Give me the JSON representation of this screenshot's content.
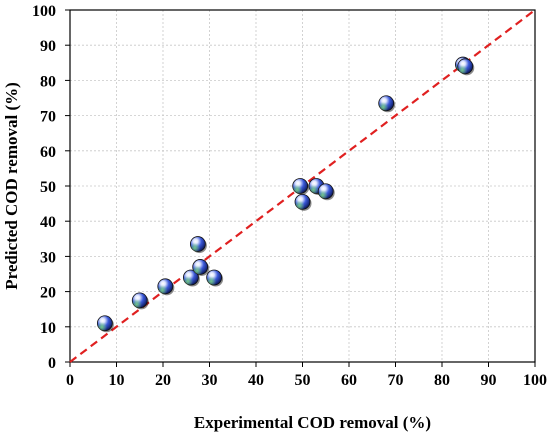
{
  "chart_data": {
    "type": "scatter",
    "title": "",
    "xlabel": "Experimental COD removal (%)",
    "ylabel": "Predicted COD removal (%)",
    "xlim": [
      0,
      100
    ],
    "ylim": [
      0,
      100
    ],
    "xticks": [
      "0",
      "10",
      "20",
      "30",
      "40",
      "50",
      "60",
      "70",
      "80",
      "90",
      "100"
    ],
    "yticks": [
      "0",
      "10",
      "20",
      "30",
      "40",
      "50",
      "60",
      "70",
      "80",
      "90",
      "100"
    ],
    "grid": true,
    "legend": "none",
    "reference_line": {
      "type": "y=x",
      "style": "dashed",
      "color": "#e02020"
    },
    "marker_color": "#2f4fd0",
    "points": [
      {
        "x": 7.5,
        "y": 11
      },
      {
        "x": 15,
        "y": 17.5
      },
      {
        "x": 20.5,
        "y": 21.5
      },
      {
        "x": 26,
        "y": 24
      },
      {
        "x": 27.5,
        "y": 33.5
      },
      {
        "x": 28,
        "y": 27
      },
      {
        "x": 31,
        "y": 24
      },
      {
        "x": 49.5,
        "y": 50
      },
      {
        "x": 50,
        "y": 45.5
      },
      {
        "x": 53,
        "y": 50
      },
      {
        "x": 55,
        "y": 48.5
      },
      {
        "x": 68,
        "y": 73.5
      },
      {
        "x": 84.5,
        "y": 84.5
      },
      {
        "x": 85,
        "y": 84
      }
    ]
  }
}
